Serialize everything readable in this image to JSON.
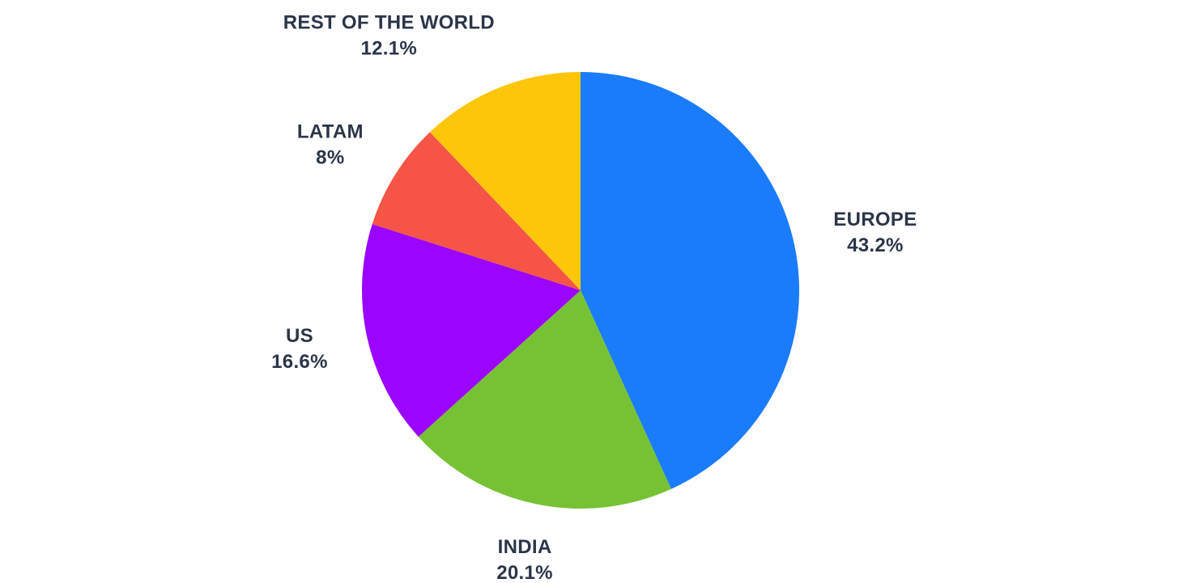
{
  "chart_data": {
    "type": "pie",
    "start_angle_deg": 0,
    "direction": "clockwise",
    "label_color": "#2B3548",
    "slices": [
      {
        "label": "EUROPE",
        "value": 43.2,
        "display": "43.2%",
        "color": "#1A7CFB"
      },
      {
        "label": "INDIA",
        "value": 20.1,
        "display": "20.1%",
        "color": "#77C234"
      },
      {
        "label": "US",
        "value": 16.6,
        "display": "16.6%",
        "color": "#9B05FF"
      },
      {
        "label": "LATAM",
        "value": 8,
        "display": "8%",
        "color": "#F55446"
      },
      {
        "label": "REST OF THE WORLD",
        "value": 12.1,
        "display": "12.1%",
        "color": "#FEC60A"
      }
    ]
  }
}
